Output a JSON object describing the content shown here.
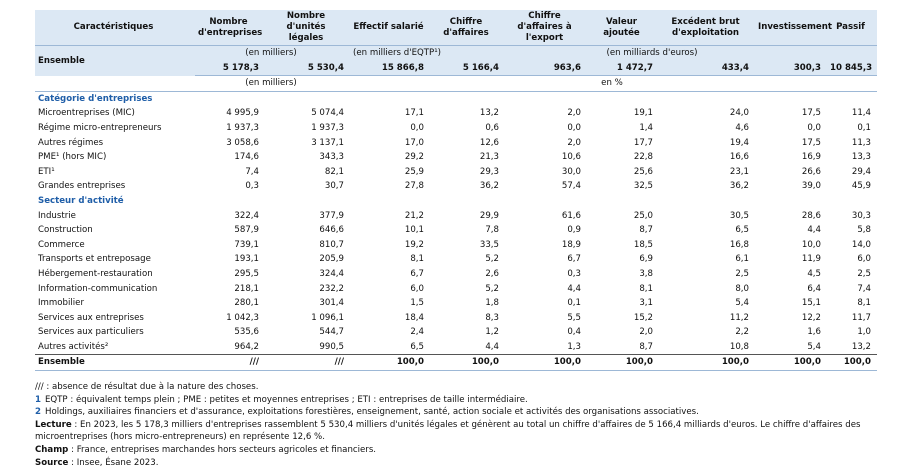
{
  "table": {
    "header": [
      "Caractéristiques",
      "Nombre d'entreprises",
      "Nombre d'unités légales",
      "Effectif salarié",
      "Chiffre d'affaires",
      "Chiffre d'affaires à l'export",
      "Valeur ajoutée",
      "Excédent brut d'exploitation",
      "Investissement",
      "Passif"
    ],
    "ensemble": {
      "label": "Ensemble",
      "units": [
        "(en milliers)",
        "(en milliers d'EQTP¹)",
        "(en milliards d'euros)"
      ],
      "values": [
        "5 178,3",
        "5 530,4",
        "15 866,8",
        "5 166,4",
        "963,6",
        "1 472,7",
        "433,4",
        "300,3",
        "10 845,3"
      ]
    },
    "units": [
      "(en milliers)",
      "en %"
    ],
    "sections": [
      {
        "title": "Catégorie d'entreprises",
        "rows": [
          {
            "label": "Microentreprises (MIC)",
            "values": [
              "4 995,9",
              "5 074,4",
              "17,1",
              "13,2",
              "2,0",
              "19,1",
              "24,0",
              "17,5",
              "11,4"
            ],
            "children": [
              {
                "label": "Régime micro-entrepreneurs",
                "values": [
                  "1 937,3",
                  "1 937,3",
                  "0,0",
                  "0,6",
                  "0,0",
                  "1,4",
                  "4,6",
                  "0,0",
                  "0,1"
                ]
              },
              {
                "label": "Autres régimes",
                "values": [
                  "3 058,6",
                  "3 137,1",
                  "17,0",
                  "12,6",
                  "2,0",
                  "17,7",
                  "19,4",
                  "17,5",
                  "11,3"
                ]
              }
            ]
          },
          {
            "label": "PME¹ (hors MIC)",
            "values": [
              "174,6",
              "343,3",
              "29,2",
              "21,3",
              "10,6",
              "22,8",
              "16,6",
              "16,9",
              "13,3"
            ]
          },
          {
            "label": "ETI¹",
            "values": [
              "7,4",
              "82,1",
              "25,9",
              "29,3",
              "30,0",
              "25,6",
              "23,1",
              "26,6",
              "29,4"
            ]
          },
          {
            "label": "Grandes entreprises",
            "values": [
              "0,3",
              "30,7",
              "27,8",
              "36,2",
              "57,4",
              "32,5",
              "36,2",
              "39,0",
              "45,9"
            ]
          }
        ]
      },
      {
        "title": "Secteur d'activité",
        "rows": [
          {
            "label": "Industrie",
            "values": [
              "322,4",
              "377,9",
              "21,2",
              "29,9",
              "61,6",
              "25,0",
              "30,5",
              "28,6",
              "30,3"
            ]
          },
          {
            "label": "Construction",
            "values": [
              "587,9",
              "646,6",
              "10,1",
              "7,8",
              "0,9",
              "8,7",
              "6,5",
              "4,4",
              "5,8"
            ]
          },
          {
            "label": "Commerce",
            "values": [
              "739,1",
              "810,7",
              "19,2",
              "33,5",
              "18,9",
              "18,5",
              "16,8",
              "10,0",
              "14,0"
            ]
          },
          {
            "label": "Transports et entreposage",
            "values": [
              "193,1",
              "205,9",
              "8,1",
              "5,2",
              "6,7",
              "6,9",
              "6,1",
              "11,9",
              "6,0"
            ]
          },
          {
            "label": "Hébergement-restauration",
            "values": [
              "295,5",
              "324,4",
              "6,7",
              "2,6",
              "0,3",
              "3,8",
              "2,5",
              "4,5",
              "2,5"
            ]
          },
          {
            "label": "Information-communication",
            "values": [
              "218,1",
              "232,2",
              "6,0",
              "5,2",
              "4,4",
              "8,1",
              "8,0",
              "6,4",
              "7,4"
            ]
          },
          {
            "label": "Immobilier",
            "values": [
              "280,1",
              "301,4",
              "1,5",
              "1,8",
              "0,1",
              "3,1",
              "5,4",
              "15,1",
              "8,1"
            ]
          },
          {
            "label": "Services aux entreprises",
            "values": [
              "1 042,3",
              "1 096,1",
              "18,4",
              "8,3",
              "5,5",
              "15,2",
              "11,2",
              "12,2",
              "11,7"
            ]
          },
          {
            "label": "Services aux particuliers",
            "values": [
              "535,6",
              "544,7",
              "2,4",
              "1,2",
              "0,4",
              "2,0",
              "2,2",
              "1,6",
              "1,0"
            ]
          },
          {
            "label": "Autres activités²",
            "values": [
              "964,2",
              "990,5",
              "6,5",
              "4,4",
              "1,3",
              "8,7",
              "10,8",
              "5,4",
              "13,2"
            ]
          }
        ]
      }
    ],
    "total": {
      "label": "Ensemble",
      "values": [
        "///",
        "///",
        "100,0",
        "100,0",
        "100,0",
        "100,0",
        "100,0",
        "100,0",
        "100,0"
      ]
    }
  },
  "notes": [
    {
      "text": "/// : absence de résultat due à la nature des choses."
    },
    {
      "marker": "1",
      "text": "EQTP : équivalent temps plein ; PME : petites et moyennes entreprises ; ETI : entreprises de taille intermédiaire."
    },
    {
      "marker": "2",
      "text": "Holdings, auxiliaires financiers et d'assurance, exploitations forestières, enseignement, santé, action sociale et activités des organisations associatives."
    },
    {
      "label": "Lecture",
      "text": " : En 2023, les 5 178,3 milliers d'entreprises rassemblent 5 530,4 milliers d'unités légales et génèrent au total un chiffre d'affaires de 5 166,4 milliards d'euros. Le chiffre d'affaires des microentreprises (hors micro-entrepreneurs) en représente 12,6 %."
    },
    {
      "label": "Champ",
      "text": " : France, entreprises marchandes hors secteurs agricoles et financiers."
    },
    {
      "label": "Source",
      "text": " : Insee, Ésane 2023."
    }
  ]
}
